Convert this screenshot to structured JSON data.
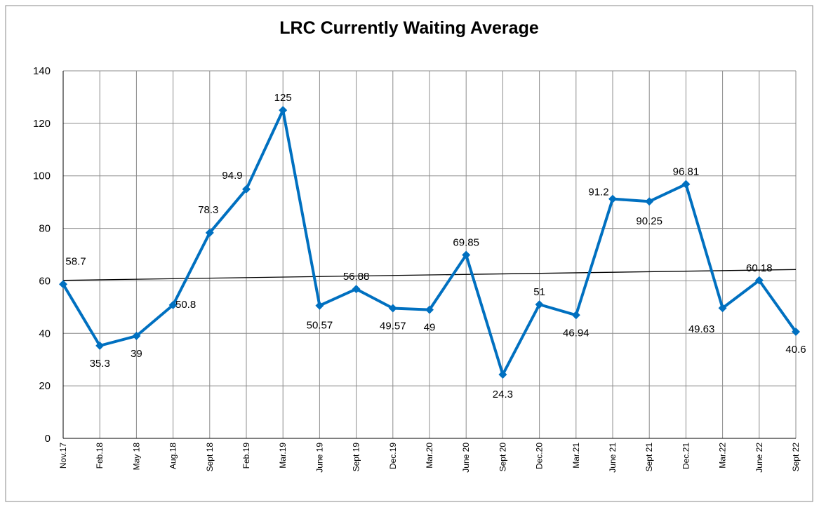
{
  "chart_data": {
    "type": "line",
    "title": "LRC Currently Waiting Average",
    "categories": [
      "Nov.17",
      "Feb.18",
      "May 18",
      "Aug.18",
      "Sept 18",
      "Feb.19",
      "Mar.19",
      "June 19",
      "Sept 19",
      "Dec.19",
      "Mar.20",
      "June 20",
      "Sept 20",
      "Dec.20",
      "Mar.21",
      "June 21",
      "Sept 21",
      "Dec.21",
      "Mar.22",
      "June 22",
      "Sept 22"
    ],
    "series": [
      {
        "color": "#0070c0",
        "values": [
          58.7,
          35.3,
          39,
          50.8,
          78.3,
          94.9,
          125,
          50.57,
          56.88,
          49.57,
          49,
          69.85,
          24.3,
          51,
          46.94,
          91.2,
          90.25,
          96.81,
          49.63,
          60.18,
          40.6
        ]
      }
    ],
    "trendline": {
      "color": "#000000",
      "values": [
        60.2,
        64.3
      ]
    },
    "ylim": [
      0,
      140
    ],
    "yticks": [
      0,
      20,
      40,
      60,
      80,
      100,
      120,
      140
    ],
    "grid": true
  }
}
